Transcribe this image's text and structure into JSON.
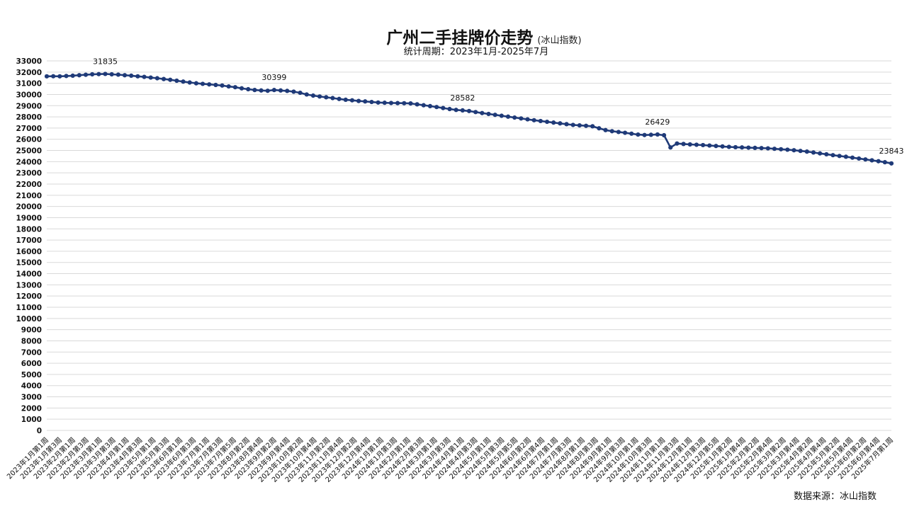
{
  "chart_data": {
    "type": "line",
    "title": "广州二手挂牌价走势",
    "title_note": "(冰山指数)",
    "subtitle": "统计周期：2023年1月-2025年7月",
    "source": "数据来源：冰山指数",
    "ylim": [
      0,
      33000
    ],
    "y_ticks": [
      0,
      1000,
      2000,
      3000,
      4000,
      5000,
      6000,
      7000,
      8000,
      9000,
      10000,
      11000,
      12000,
      13000,
      14000,
      15000,
      16000,
      17000,
      18000,
      19000,
      20000,
      21000,
      22000,
      23000,
      24000,
      25000,
      26000,
      27000,
      28000,
      29000,
      30000,
      31000,
      32000,
      33000
    ],
    "grid": true,
    "line_color": "#1f3a78",
    "x_ticks": [
      "2023年1月第1周",
      "2023年1月第3周",
      "2023年2月第1周",
      "2023年2月第3周",
      "2023年3月第1周",
      "2023年3月第3周",
      "2023年4月第1周",
      "2023年4月第3周",
      "2023年5月第1周",
      "2023年5月第3周",
      "2023年6月第1周",
      "2023年6月第3周",
      "2023年7月第1周",
      "2023年7月第3周",
      "2023年7月第5周",
      "2023年8月第2周",
      "2023年8月第4周",
      "2023年9月第2周",
      "2023年9月第4周",
      "2023年10月第2周",
      "2023年10月第4周",
      "2023年11月第2周",
      "2023年11月第4周",
      "2023年12月第2周",
      "2023年12月第4周",
      "2024年1月第1周",
      "2024年1月第3周",
      "2024年2月第1周",
      "2024年2月第3周",
      "2024年3月第1周",
      "2024年3月第3周",
      "2024年4月第1周",
      "2024年4月第3周",
      "2024年5月第1周",
      "2024年5月第3周",
      "2024年5月第5周",
      "2024年6月第2周",
      "2024年6月第4周",
      "2024年7月第1周",
      "2024年7月第3周",
      "2024年8月第1周",
      "2024年8月第3周",
      "2024年9月第1周",
      "2024年9月第3周",
      "2024年10月第1周",
      "2024年10月第3周",
      "2024年11月第1周",
      "2024年11月第3周",
      "2024年12月第1周",
      "2024年12月第3周",
      "2024年12月第5周",
      "2025年1月第2周",
      "2025年1月第4周",
      "2025年2月第2周",
      "2025年2月第4周",
      "2025年3月第2周",
      "2025年3月第4周",
      "2025年4月第2周",
      "2025年4月第4周",
      "2025年5月第2周",
      "2025年5月第4周",
      "2025年6月第2周",
      "2025年6月第4周",
      "2025年7月第1周"
    ],
    "values": [
      31620,
      31630,
      31620,
      31650,
      31680,
      31720,
      31760,
      31800,
      31820,
      31835,
      31800,
      31770,
      31720,
      31680,
      31620,
      31570,
      31510,
      31450,
      31380,
      31310,
      31230,
      31150,
      31070,
      31000,
      30950,
      30900,
      30850,
      30800,
      30720,
      30650,
      30550,
      30470,
      30400,
      30360,
      30330,
      30399,
      30360,
      30320,
      30250,
      30150,
      30000,
      29900,
      29820,
      29750,
      29680,
      29600,
      29530,
      29480,
      29420,
      29380,
      29330,
      29280,
      29260,
      29240,
      29230,
      29220,
      29200,
      29120,
      29040,
      28960,
      28880,
      28790,
      28700,
      28620,
      28582,
      28520,
      28430,
      28340,
      28260,
      28180,
      28100,
      28020,
      27940,
      27860,
      27780,
      27700,
      27630,
      27560,
      27490,
      27420,
      27350,
      27280,
      27240,
      27200,
      27160,
      26980,
      26820,
      26720,
      26650,
      26580,
      26500,
      26420,
      26380,
      26400,
      26429,
      26360,
      25270,
      25620,
      25580,
      25540,
      25510,
      25480,
      25440,
      25400,
      25360,
      25320,
      25290,
      25270,
      25250,
      25230,
      25210,
      25190,
      25150,
      25110,
      25070,
      25020,
      24960,
      24900,
      24820,
      24740,
      24660,
      24580,
      24510,
      24440,
      24360,
      24280,
      24200,
      24120,
      24040,
      23950,
      23843
    ],
    "annotations": [
      {
        "label": "31835",
        "index": 9
      },
      {
        "label": "30399",
        "index": 35
      },
      {
        "label": "28582",
        "index": 64
      },
      {
        "label": "26429",
        "index": 94
      },
      {
        "label": "23843",
        "index": 130
      }
    ]
  }
}
